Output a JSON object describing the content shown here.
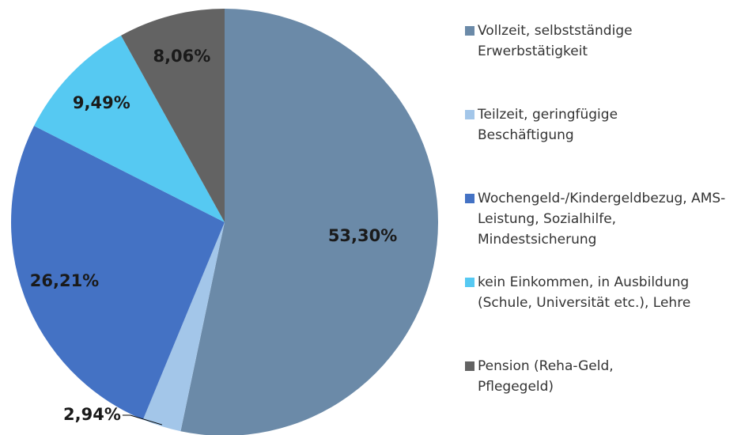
{
  "chart_data": {
    "type": "pie",
    "categories": [
      "Vollzeit, selbstständige Erwerbstätigkeit",
      "Teilzeit, geringfügige Beschäftigung",
      "Wochengeld-/Kindergeldbezug, AMS-Leistung, Sozialhilfe, Mindestsicherung",
      "kein Einkommen, in Ausbildung (Schule, Universität etc.), Lehre",
      "Pension (Reha-Geld, Pflegegeld)"
    ],
    "values": [
      53.3,
      2.94,
      26.21,
      9.49,
      8.06
    ],
    "value_labels": [
      "53,30%",
      "2,94%",
      "26,21%",
      "9,49%",
      "8,06%"
    ],
    "colors": [
      "#6b8aa8",
      "#a3c6e9",
      "#4472c4",
      "#56c9f2",
      "#636363"
    ],
    "legend": "right"
  }
}
